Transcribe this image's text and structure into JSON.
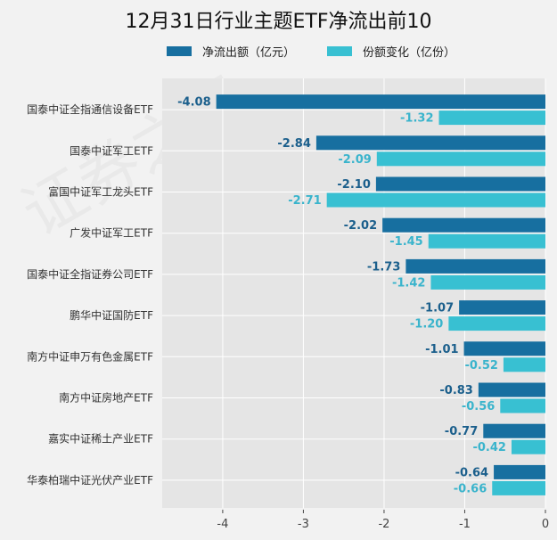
{
  "chart_data": {
    "type": "bar",
    "orientation": "horizontal",
    "title": "12月31日行业主题ETF净流出前10",
    "categories": [
      "国泰中证全指通信设备ETF",
      "国泰中证军工ETF",
      "富国中证军工龙头ETF",
      "广发中证军工ETF",
      "国泰中证全指证券公司ETF",
      "鹏华中证国防ETF",
      "南方中证申万有色金属ETF",
      "南方中证房地产ETF",
      "嘉实中证稀土产业ETF",
      "华泰柏瑞中证光伏产业ETF"
    ],
    "series": [
      {
        "name": "净流出额（亿元）",
        "color": "#176fa0",
        "values": [
          -4.08,
          -2.84,
          -2.1,
          -2.02,
          -1.73,
          -1.07,
          -1.01,
          -0.83,
          -0.77,
          -0.64
        ]
      },
      {
        "name": "份额变化（亿份）",
        "color": "#38c0d2",
        "values": [
          -1.32,
          -2.09,
          -2.71,
          -1.45,
          -1.42,
          -1.2,
          -0.52,
          -0.56,
          -0.42,
          -0.66
        ]
      }
    ],
    "xlim": [
      -4.75,
      0
    ],
    "xticks": [
      -4,
      -3,
      -2,
      -1,
      0
    ],
    "legend": "top-center",
    "grid": true
  }
}
